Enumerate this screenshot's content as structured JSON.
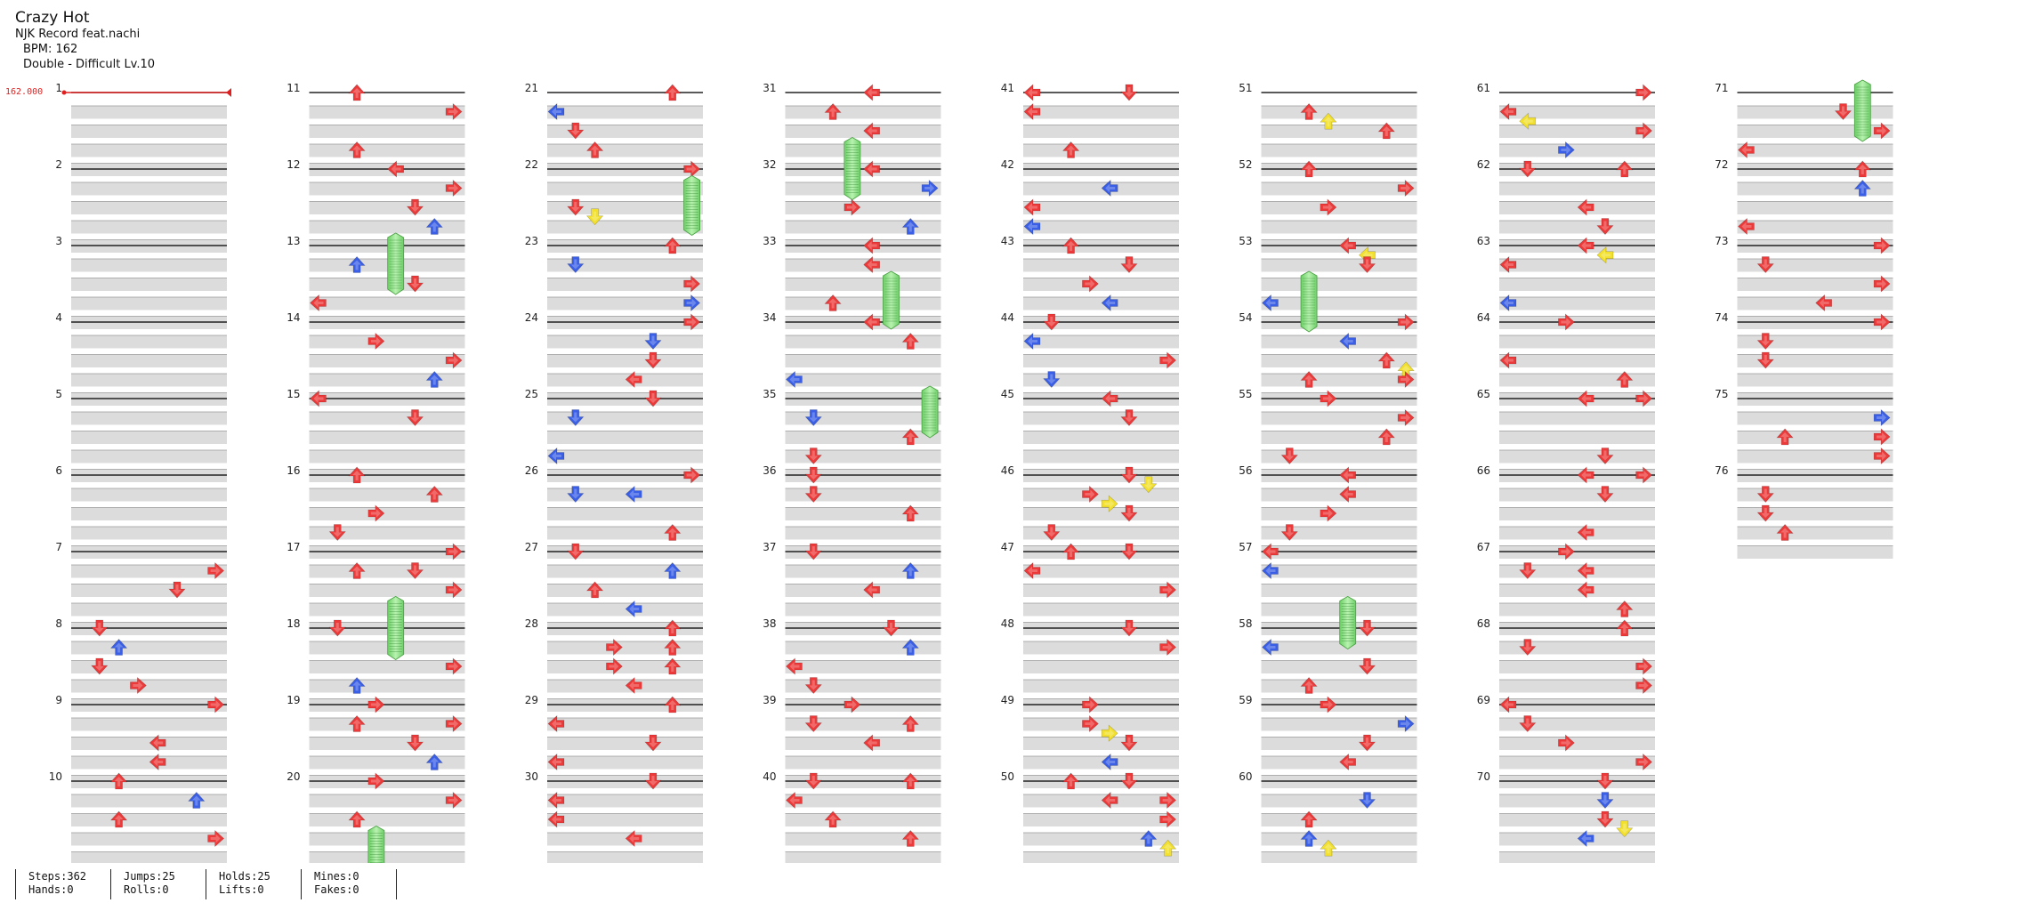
{
  "song": {
    "title": "Crazy Hot",
    "artist": "NJK Record feat.nachi",
    "bpm_text": "BPM: 162",
    "chart_text": "Double - Difficult Lv.10"
  },
  "bpm_marker": "162.000",
  "measures": [
    "1",
    "2",
    "3",
    "4",
    "5",
    "6",
    "7",
    "8",
    "9",
    "10",
    "11",
    "12",
    "13",
    "14",
    "15",
    "16",
    "17",
    "18",
    "19",
    "20",
    "21",
    "22",
    "23",
    "24",
    "25",
    "26",
    "27",
    "28",
    "29",
    "30",
    "31",
    "32",
    "33",
    "34",
    "35",
    "36",
    "37",
    "38",
    "39",
    "40",
    "41",
    "42",
    "43",
    "44",
    "45",
    "46",
    "47",
    "48",
    "49",
    "50",
    "51",
    "52",
    "53",
    "54",
    "55",
    "56",
    "57",
    "58",
    "59",
    "60",
    "61",
    "62",
    "63",
    "64",
    "65",
    "66",
    "67",
    "68",
    "69",
    "70",
    "71",
    "72",
    "73",
    "74",
    "75",
    "76"
  ],
  "icons": {
    "quarter_note": "red-arrow-icon",
    "eighth_note": "blue-arrow-icon",
    "sixteenth_note": "yellow-arrow-icon",
    "hold": "green-hold-icon"
  },
  "colors": {
    "quarter": "#ec3939",
    "eighth": "#3a5fe6",
    "sixteenth": "#f2e02c",
    "hold": "#8fe08a",
    "stripe": "#dcdcdc",
    "bpm": "#e02020"
  },
  "stats": [
    {
      "label": "Steps:362",
      "label2": "Hands:0"
    },
    {
      "label": "Jumps:25",
      "label2": "Rolls:0"
    },
    {
      "label": "Holds:25",
      "label2": "Lifts:0"
    },
    {
      "label": "Mines:0",
      "label2": "Fakes:0"
    }
  ]
}
